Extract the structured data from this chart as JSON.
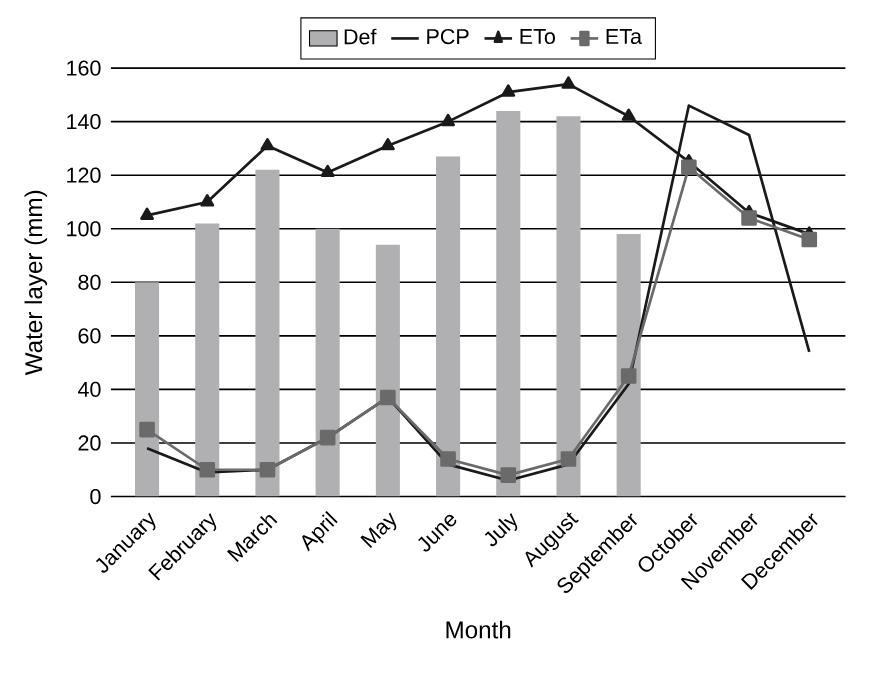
{
  "chart_data": {
    "type": "line",
    "xlabel": "Month",
    "ylabel": "Water layer (mm)",
    "categories": [
      "January",
      "February",
      "March",
      "April",
      "May",
      "June",
      "July",
      "August",
      "September",
      "October",
      "November",
      "December"
    ],
    "series": [
      {
        "name": "Def",
        "type": "bar",
        "color": "#b0b0b2",
        "values": [
          80,
          102,
          122,
          100,
          94,
          127,
          144,
          142,
          98,
          null,
          null,
          null
        ]
      },
      {
        "name": "PCP",
        "color": "#1a1a1a",
        "marker": "none",
        "values": [
          18,
          9,
          10,
          22,
          37,
          12,
          6,
          12,
          42,
          146,
          135,
          54
        ]
      },
      {
        "name": "ETo",
        "color": "#1a1a1a",
        "marker": "triangle",
        "values": [
          105,
          110,
          131,
          121,
          131,
          140,
          151,
          154,
          142,
          125,
          106,
          98
        ]
      },
      {
        "name": "ETa",
        "color": "#6a6a6a",
        "marker": "square",
        "values": [
          25,
          10,
          10,
          22,
          37,
          14,
          8,
          14,
          45,
          123,
          104,
          96
        ]
      }
    ],
    "ylim": [
      0,
      160
    ],
    "yticks": [
      0,
      20,
      40,
      60,
      80,
      100,
      120,
      140,
      160
    ],
    "grid": "y",
    "legend": "top"
  }
}
